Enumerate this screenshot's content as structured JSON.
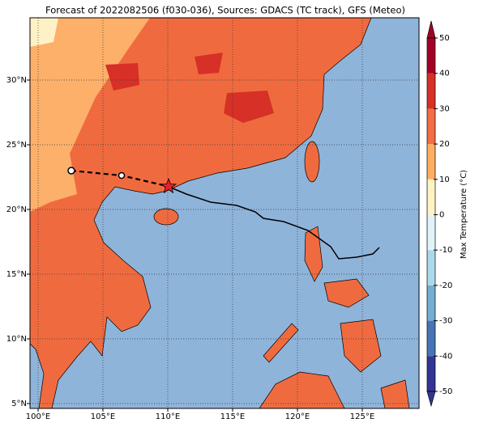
{
  "title": "Forecast of 2022082506 (f030-036), Sources: GDACS (TC track), GFS (Meteo)",
  "map": {
    "lon_ticks": [
      {
        "value": 100,
        "label": "100°E"
      },
      {
        "value": 105,
        "label": "105°E"
      },
      {
        "value": 110,
        "label": "110°E"
      },
      {
        "value": 115,
        "label": "115°E"
      },
      {
        "value": 120,
        "label": "120°E"
      },
      {
        "value": 125,
        "label": "125°E"
      }
    ],
    "lat_ticks": [
      {
        "value": 30,
        "label": "30°N"
      },
      {
        "value": 25,
        "label": "25°N"
      },
      {
        "value": 20,
        "label": "20°N"
      },
      {
        "value": 15,
        "label": "15°N"
      },
      {
        "value": 10,
        "label": "10°N"
      },
      {
        "value": 5,
        "label": "5°N"
      }
    ]
  },
  "colorbar": {
    "label": "Max Temperature (°C)",
    "ticks": [
      -50,
      -40,
      -30,
      -20,
      -10,
      0,
      10,
      20,
      30,
      40,
      50
    ],
    "colors": [
      "#313695",
      "#4575b4",
      "#74add1",
      "#abd9e9",
      "#e0f3f8",
      "#fff3c4",
      "#fdae61",
      "#f46d43",
      "#d73027",
      "#a50026"
    ]
  }
}
